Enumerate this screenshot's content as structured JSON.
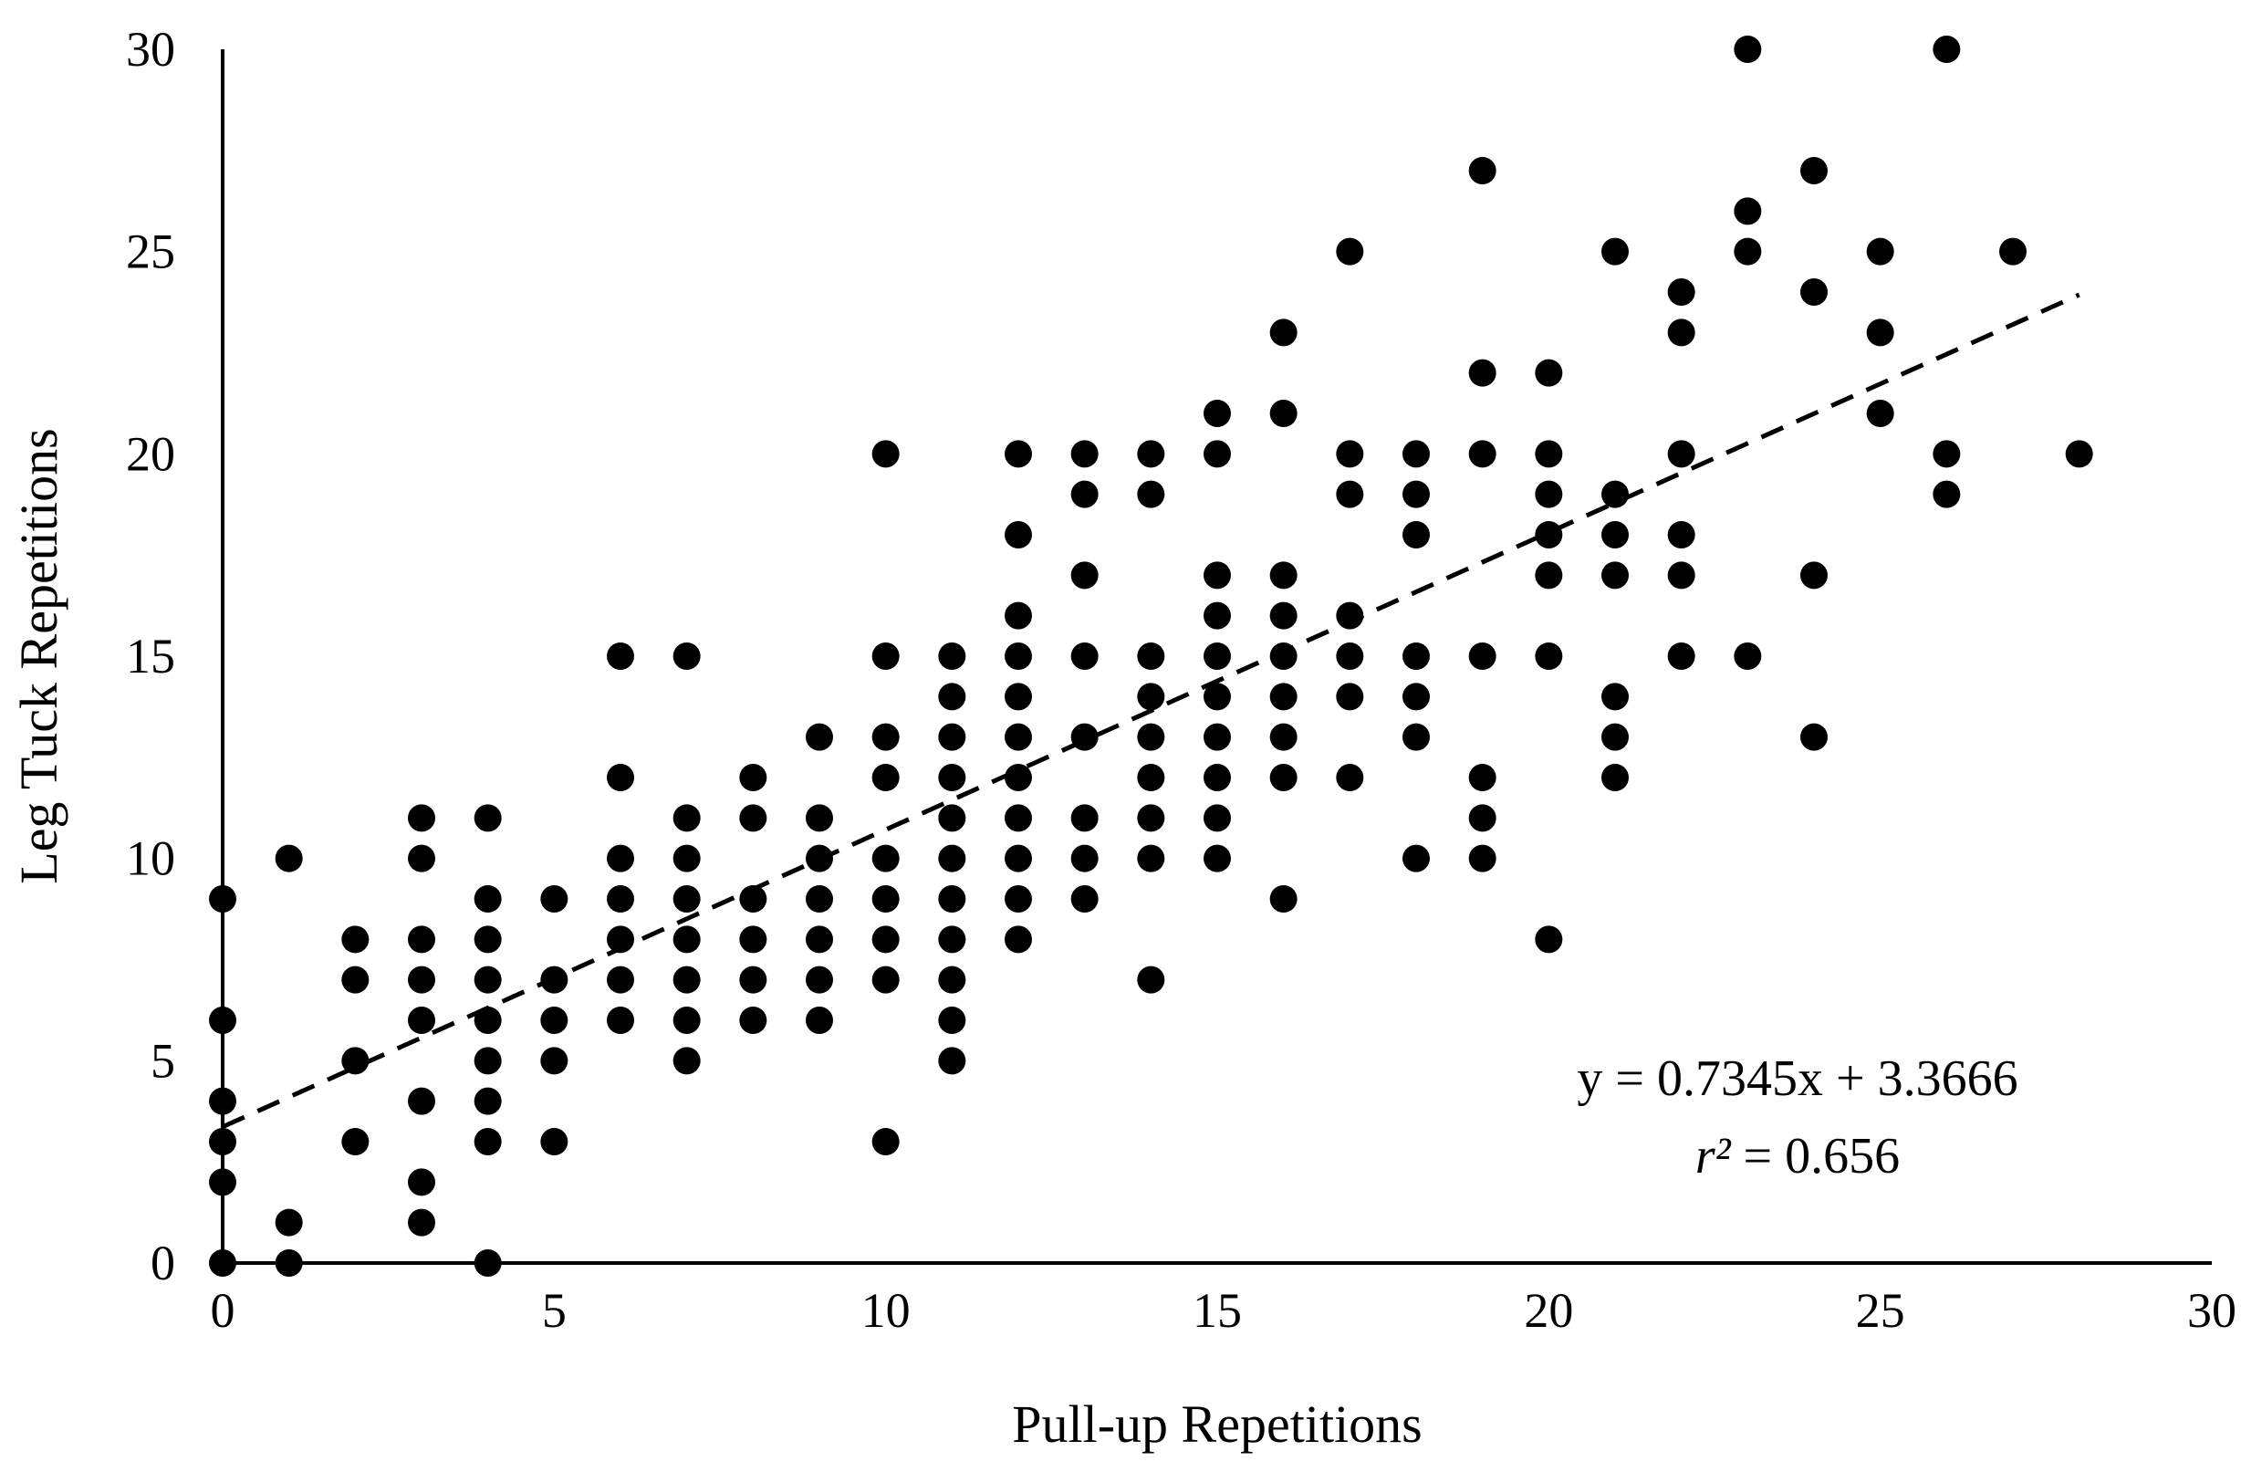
{
  "chart_data": {
    "type": "scatter",
    "title": "",
    "xlabel": "Pull-up Repetitions",
    "ylabel": "Leg Tuck Repetitions",
    "xlim": [
      0,
      30
    ],
    "ylim": [
      0,
      30
    ],
    "x_ticks": [
      "0",
      "5",
      "10",
      "15",
      "20",
      "25",
      "30"
    ],
    "y_ticks": [
      "0",
      "5",
      "10",
      "15",
      "20",
      "25",
      "30"
    ],
    "grid": false,
    "legend": "none",
    "marker_color": "#000000",
    "trendline": {
      "style": "dashed",
      "slope": 0.7345,
      "intercept": 3.3666,
      "x_range": [
        0,
        28
      ],
      "equation_text": "y = 0.7345x + 3.3666",
      "r2_symbol": "r²",
      "r2_value_text": " = 0.656"
    },
    "points": [
      [
        0,
        0
      ],
      [
        0,
        2
      ],
      [
        0,
        3
      ],
      [
        0,
        4
      ],
      [
        0,
        6
      ],
      [
        0,
        9
      ],
      [
        1,
        0
      ],
      [
        1,
        1
      ],
      [
        1,
        10
      ],
      [
        2,
        3
      ],
      [
        2,
        5
      ],
      [
        2,
        7
      ],
      [
        2,
        8
      ],
      [
        3,
        1
      ],
      [
        3,
        2
      ],
      [
        3,
        4
      ],
      [
        3,
        6
      ],
      [
        3,
        7
      ],
      [
        3,
        8
      ],
      [
        3,
        10
      ],
      [
        3,
        11
      ],
      [
        4,
        0
      ],
      [
        4,
        3
      ],
      [
        4,
        4
      ],
      [
        4,
        5
      ],
      [
        4,
        6
      ],
      [
        4,
        7
      ],
      [
        4,
        8
      ],
      [
        4,
        9
      ],
      [
        4,
        11
      ],
      [
        5,
        3
      ],
      [
        5,
        5
      ],
      [
        5,
        6
      ],
      [
        5,
        7
      ],
      [
        5,
        9
      ],
      [
        6,
        6
      ],
      [
        6,
        7
      ],
      [
        6,
        8
      ],
      [
        6,
        9
      ],
      [
        6,
        10
      ],
      [
        6,
        12
      ],
      [
        6,
        15
      ],
      [
        7,
        5
      ],
      [
        7,
        6
      ],
      [
        7,
        7
      ],
      [
        7,
        8
      ],
      [
        7,
        9
      ],
      [
        7,
        10
      ],
      [
        7,
        11
      ],
      [
        7,
        15
      ],
      [
        8,
        6
      ],
      [
        8,
        7
      ],
      [
        8,
        8
      ],
      [
        8,
        9
      ],
      [
        8,
        11
      ],
      [
        8,
        12
      ],
      [
        9,
        6
      ],
      [
        9,
        7
      ],
      [
        9,
        8
      ],
      [
        9,
        9
      ],
      [
        9,
        10
      ],
      [
        9,
        11
      ],
      [
        9,
        13
      ],
      [
        10,
        3
      ],
      [
        10,
        7
      ],
      [
        10,
        8
      ],
      [
        10,
        9
      ],
      [
        10,
        10
      ],
      [
        10,
        12
      ],
      [
        10,
        13
      ],
      [
        10,
        15
      ],
      [
        10,
        20
      ],
      [
        11,
        5
      ],
      [
        11,
        6
      ],
      [
        11,
        7
      ],
      [
        11,
        8
      ],
      [
        11,
        9
      ],
      [
        11,
        10
      ],
      [
        11,
        11
      ],
      [
        11,
        12
      ],
      [
        11,
        13
      ],
      [
        11,
        14
      ],
      [
        11,
        15
      ],
      [
        12,
        8
      ],
      [
        12,
        9
      ],
      [
        12,
        10
      ],
      [
        12,
        11
      ],
      [
        12,
        12
      ],
      [
        12,
        13
      ],
      [
        12,
        14
      ],
      [
        12,
        15
      ],
      [
        12,
        16
      ],
      [
        12,
        18
      ],
      [
        12,
        20
      ],
      [
        13,
        9
      ],
      [
        13,
        10
      ],
      [
        13,
        11
      ],
      [
        13,
        13
      ],
      [
        13,
        15
      ],
      [
        13,
        17
      ],
      [
        13,
        19
      ],
      [
        13,
        20
      ],
      [
        14,
        7
      ],
      [
        14,
        10
      ],
      [
        14,
        11
      ],
      [
        14,
        12
      ],
      [
        14,
        13
      ],
      [
        14,
        14
      ],
      [
        14,
        15
      ],
      [
        14,
        19
      ],
      [
        14,
        20
      ],
      [
        15,
        10
      ],
      [
        15,
        11
      ],
      [
        15,
        12
      ],
      [
        15,
        13
      ],
      [
        15,
        14
      ],
      [
        15,
        15
      ],
      [
        15,
        16
      ],
      [
        15,
        17
      ],
      [
        15,
        20
      ],
      [
        15,
        21
      ],
      [
        16,
        9
      ],
      [
        16,
        12
      ],
      [
        16,
        13
      ],
      [
        16,
        14
      ],
      [
        16,
        15
      ],
      [
        16,
        16
      ],
      [
        16,
        17
      ],
      [
        16,
        21
      ],
      [
        16,
        23
      ],
      [
        17,
        12
      ],
      [
        17,
        14
      ],
      [
        17,
        15
      ],
      [
        17,
        16
      ],
      [
        17,
        19
      ],
      [
        17,
        20
      ],
      [
        17,
        25
      ],
      [
        18,
        10
      ],
      [
        18,
        13
      ],
      [
        18,
        14
      ],
      [
        18,
        15
      ],
      [
        18,
        18
      ],
      [
        18,
        19
      ],
      [
        18,
        20
      ],
      [
        19,
        10
      ],
      [
        19,
        11
      ],
      [
        19,
        12
      ],
      [
        19,
        15
      ],
      [
        19,
        20
      ],
      [
        19,
        22
      ],
      [
        19,
        27
      ],
      [
        20,
        8
      ],
      [
        20,
        15
      ],
      [
        20,
        17
      ],
      [
        20,
        18
      ],
      [
        20,
        19
      ],
      [
        20,
        20
      ],
      [
        20,
        22
      ],
      [
        21,
        12
      ],
      [
        21,
        13
      ],
      [
        21,
        14
      ],
      [
        21,
        17
      ],
      [
        21,
        18
      ],
      [
        21,
        19
      ],
      [
        21,
        25
      ],
      [
        22,
        15
      ],
      [
        22,
        17
      ],
      [
        22,
        18
      ],
      [
        22,
        20
      ],
      [
        22,
        23
      ],
      [
        22,
        24
      ],
      [
        23,
        15
      ],
      [
        23,
        25
      ],
      [
        23,
        26
      ],
      [
        23,
        30
      ],
      [
        24,
        13
      ],
      [
        24,
        17
      ],
      [
        24,
        24
      ],
      [
        24,
        27
      ],
      [
        25,
        21
      ],
      [
        25,
        23
      ],
      [
        25,
        25
      ],
      [
        26,
        19
      ],
      [
        26,
        20
      ],
      [
        26,
        30
      ],
      [
        27,
        25
      ],
      [
        28,
        20
      ]
    ]
  }
}
